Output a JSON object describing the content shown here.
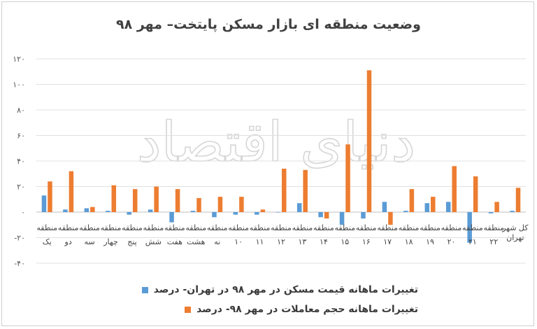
{
  "chart_data": {
    "type": "bar",
    "title": "وضعیت منطقه ای بازار مسکن پایتخت– مهر ۹۸",
    "ylim": [
      -40,
      120
    ],
    "yticks": [
      -40,
      -20,
      0,
      20,
      40,
      60,
      80,
      100,
      120
    ],
    "ytick_labels": [
      "-۴۰",
      "-۲۰",
      "۰",
      "۲۰",
      "۴۰",
      "۶۰",
      "۸۰",
      "۱۰۰",
      "۱۲۰"
    ],
    "grid": true,
    "legend_position": "bottom",
    "categories": [
      "منطقه یک",
      "منطقه دو",
      "منطقه سه",
      "منطقه چهار",
      "منطقه پنج",
      "منطقه شش",
      "منطقه هفت",
      "منطقه هشت",
      "منطقه نه",
      "منطقه ۱۰",
      "منطقه ۱۱",
      "منطقه ۱۲",
      "منطقه ۱۳",
      "منطقه ۱۴",
      "منطقه ۱۵",
      "منطقه ۱۶",
      "منطقه ۱۷",
      "منطقه ۱۸",
      "منطقه ۱۹",
      "منطقه ۲۰",
      "منطقه ۲۱",
      "منطقه ۲۲",
      "کل شهر تهران"
    ],
    "series": [
      {
        "name": "تغییرات ماهانه قیمت مسکن در مهر ۹۸ در تهران- درصد",
        "color": "#5b9bd5",
        "values": [
          13,
          2,
          3,
          1,
          -2,
          2,
          -8,
          1,
          -4,
          -2,
          -2,
          0,
          7,
          -4,
          -10,
          -5,
          8,
          1,
          7,
          8,
          -24,
          -1,
          1
        ]
      },
      {
        "name": "تغییرات ماهانه حجم معاملات در مهر ۹۸- درصد",
        "color": "#ed7d31",
        "values": [
          24,
          32,
          4,
          21,
          18,
          20,
          18,
          11,
          12,
          12,
          2,
          34,
          33,
          -5,
          53,
          111,
          -10,
          18,
          12,
          36,
          28,
          8,
          19
        ]
      }
    ]
  },
  "watermark_text": "دنیای اقتصاد"
}
